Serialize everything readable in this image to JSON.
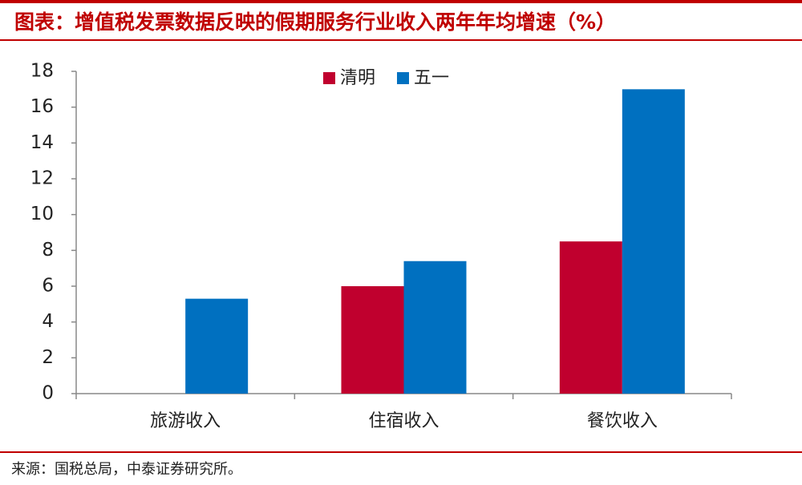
{
  "chart_data": {
    "type": "bar",
    "title": "图表：增值税发票数据反映的假期服务行业收入两年年均增速（%）",
    "source": "来源：国税总局，中泰证券研究所。",
    "categories": [
      "旅游收入",
      "住宿收入",
      "餐饮收入"
    ],
    "series": [
      {
        "name": "清明",
        "color": "#c0002e",
        "values": [
          null,
          6.0,
          8.5
        ]
      },
      {
        "name": "五一",
        "color": "#0070c0",
        "values": [
          5.3,
          7.4,
          17.0
        ]
      }
    ],
    "ylim": [
      0,
      18
    ],
    "yticks": [
      0,
      2,
      4,
      6,
      8,
      10,
      12,
      14,
      16,
      18
    ],
    "legend": "top"
  }
}
